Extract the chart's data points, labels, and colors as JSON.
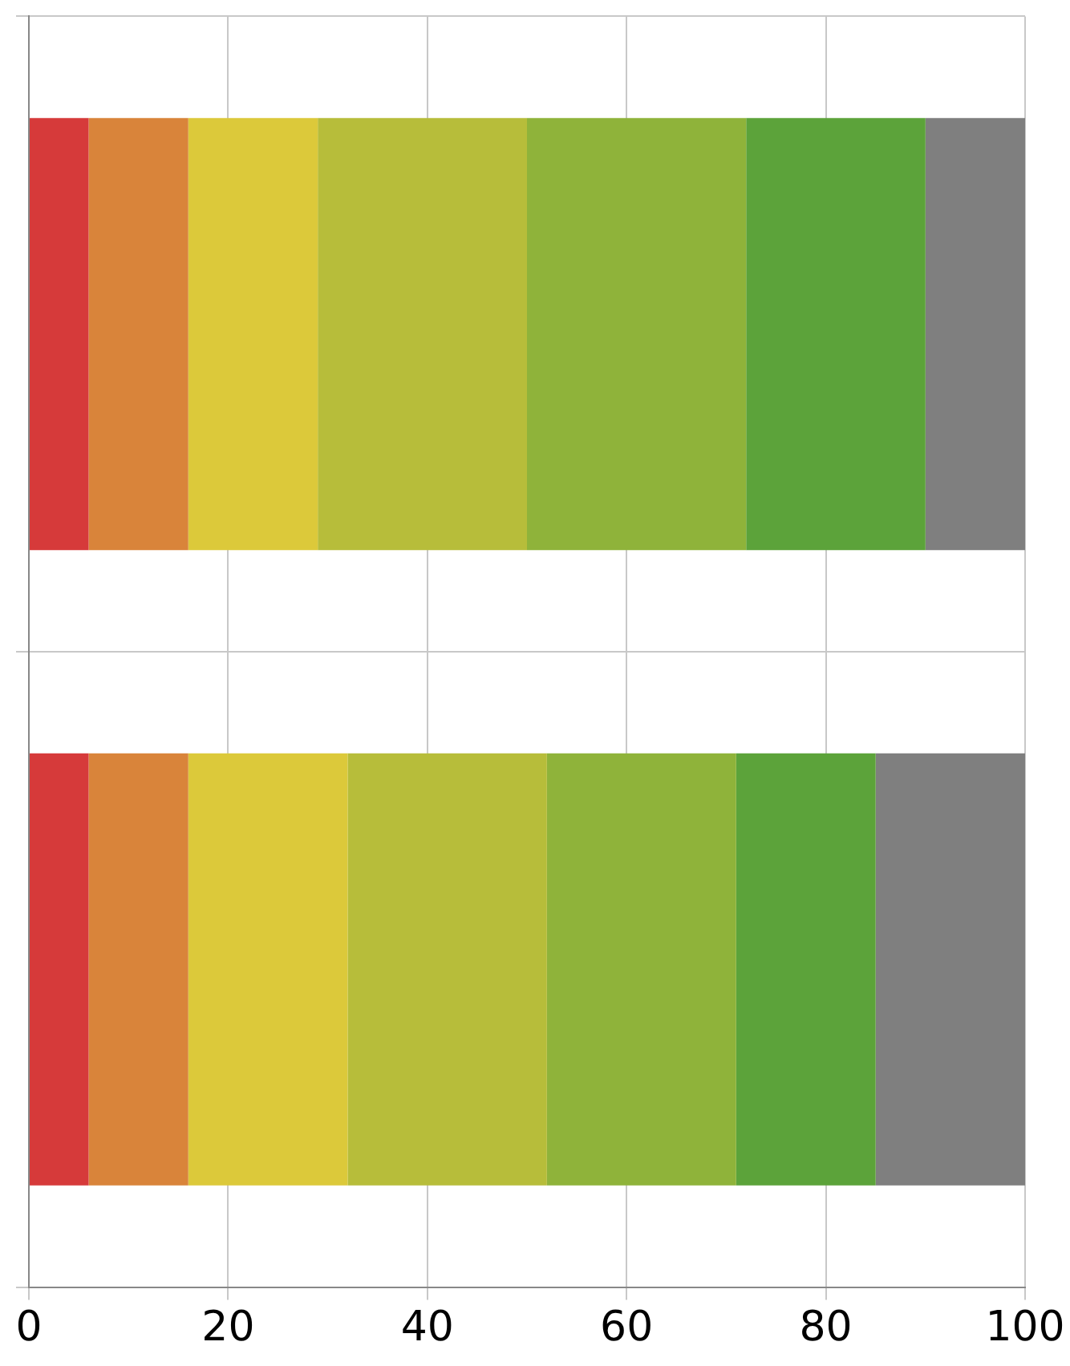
{
  "chart_data": {
    "type": "bar",
    "orientation": "horizontal",
    "stacked": true,
    "categories": [
      null,
      null
    ],
    "series": [
      {
        "color": "#d63a3a",
        "values": [
          6,
          6
        ]
      },
      {
        "color": "#d9843a",
        "values": [
          10,
          10
        ]
      },
      {
        "color": "#dcc93a",
        "values": [
          13,
          16
        ]
      },
      {
        "color": "#b7bd3a",
        "values": [
          21,
          20
        ]
      },
      {
        "color": "#8fb33a",
        "values": [
          22,
          19
        ]
      },
      {
        "color": "#5ca33a",
        "values": [
          18,
          14
        ]
      },
      {
        "color": "#7f7f7f",
        "values": [
          10,
          15
        ]
      }
    ],
    "xlim": [
      0,
      100
    ],
    "xticks": [
      0,
      20,
      40,
      60,
      80,
      100
    ],
    "grid": true,
    "legend": false
  }
}
